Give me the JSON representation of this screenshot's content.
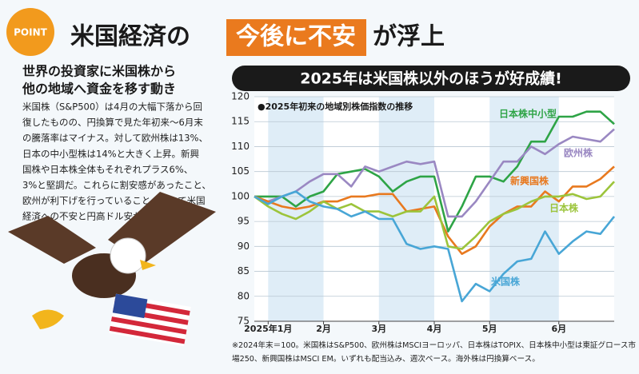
{
  "header": {
    "badge": "POINT",
    "title_before": "米国経済の",
    "title_highlight": "今後に不安",
    "title_after": "が浮上"
  },
  "left": {
    "heading": [
      "世界の投資家に米国株から",
      "他の地域へ資金を移す動き"
    ],
    "body": [
      "米国株（S&P500）は4月の大幅下落から回",
      "復したものの、円換算で見た年初来～6月末",
      "の騰落率はマイナス。対して欧州株は13%、",
      "日本の中小型株は14%と大きく上昇。新興",
      "国株や日本株全体もそれぞれプラス6%、",
      "3%と堅調だ。これらに割安感があったこと、",
      "欧州が利下げを行っていること、そして米国",
      "経済への不安と円高ドル安が背景にある。"
    ]
  },
  "chart_data": {
    "type": "line",
    "title": "2025年は米国株以外のほうが好成績!",
    "subtitle": "●2025年初来の地域別株価指数の推移",
    "categories": [
      null,
      "2025年1月",
      null,
      null,
      null,
      "2月",
      null,
      null,
      null,
      "3月",
      null,
      null,
      null,
      "4月",
      null,
      null,
      null,
      "5月",
      null,
      null,
      null,
      null,
      "6月",
      null,
      null,
      null,
      null
    ],
    "ylim": [
      75,
      120
    ],
    "yticks": [
      75,
      80,
      85,
      90,
      95,
      100,
      105,
      110,
      115,
      120
    ],
    "grid": true,
    "series": [
      {
        "name": "日本株中小型",
        "color": "#2ea446",
        "values": [
          100,
          100,
          100,
          98,
          100,
          101,
          104.5,
          105,
          105.5,
          104,
          101,
          103,
          104,
          104,
          93,
          98,
          104,
          104,
          103,
          106,
          111,
          111,
          116,
          116,
          117,
          117,
          114.5
        ]
      },
      {
        "name": "欧州株",
        "color": "#9a88c2",
        "values": [
          100,
          99,
          100,
          101,
          103,
          104.5,
          104.5,
          102,
          106,
          105,
          106,
          107,
          106.5,
          107,
          96,
          96,
          99,
          103,
          107,
          107,
          110,
          108.5,
          110.5,
          112,
          111.5,
          111,
          113.5
        ]
      },
      {
        "name": "新興国株",
        "color": "#e8791f",
        "values": [
          100,
          99,
          98,
          97.5,
          98,
          99,
          99,
          100,
          100,
          100.5,
          100.5,
          97,
          97.5,
          98,
          92,
          88.5,
          90,
          94,
          96.5,
          98,
          98,
          101,
          99,
          102,
          102,
          103.5,
          106
        ]
      },
      {
        "name": "日本株",
        "color": "#9cc43b",
        "values": [
          100,
          98,
          96.5,
          95.5,
          97,
          99,
          97.5,
          98.5,
          97,
          97,
          96,
          97,
          97,
          100,
          90,
          89.5,
          92,
          95,
          96.5,
          97.5,
          99,
          100,
          100,
          100.5,
          99.5,
          100,
          103
        ]
      },
      {
        "name": "米国株",
        "color": "#48a6d6",
        "values": [
          100,
          98.5,
          100,
          101,
          99,
          98,
          97.5,
          96,
          97,
          95.5,
          95.5,
          90.5,
          89.5,
          90,
          89.5,
          79,
          82.5,
          81,
          84.5,
          87,
          87.5,
          93,
          88.5,
          91,
          93,
          92.5,
          96
        ]
      }
    ],
    "footnote": [
      "※2024年末＝100。米国株はS&P500、欧州株はMSCIヨーロッパ、日本株はTOPIX、日本株中小型は東証グロース市",
      "場250、新興国株はMSCI EM。いずれも配当込み、週次ベース。海外株は円換算ベース。"
    ]
  }
}
